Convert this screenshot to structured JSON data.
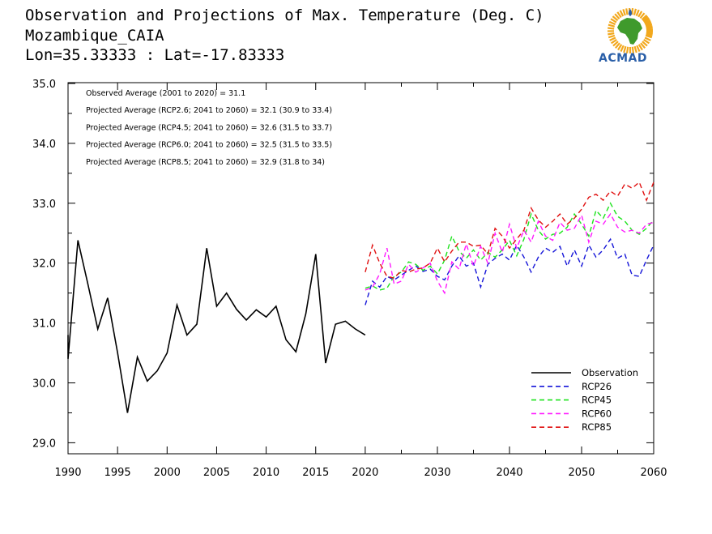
{
  "header": {
    "title": "Observation and Projections of Max. Temperature (Deg. C)",
    "location": "Mozambique_CAIA",
    "coords": "Lon=35.33333 : Lat=-17.83333"
  },
  "logo": {
    "text": "ACMAD",
    "colors": {
      "ring": "#f2a81d",
      "africa": "#3f9a2c",
      "drop": "#2a5fa8",
      "text": "#2a5fa8"
    }
  },
  "chart_data": {
    "type": "line",
    "x_range": [
      1990,
      2060
    ],
    "x_ticks": [
      1990,
      1995,
      2000,
      2005,
      2010,
      2015,
      2020,
      2030,
      2040,
      2050,
      2060
    ],
    "x_tick_labels": [
      "1990",
      "1995",
      "2000",
      "2005",
      "2010",
      "2015",
      "2020",
      "2030",
      "2040",
      "2050",
      "2060"
    ],
    "ylim": [
      28.8,
      35.0
    ],
    "y_ticks": [
      29.0,
      30.0,
      31.0,
      32.0,
      33.0,
      34.0,
      35.0
    ],
    "y_tick_labels": [
      "29.0",
      "30.0",
      "31.0",
      "32.0",
      "33.0",
      "34.0",
      "35.0"
    ],
    "annotations": [
      "Observed Average (2001 to 2020) = 31.1",
      "Projected Average (RCP2.6; 2041 to 2060) = 32.1 (30.9 to 33.4)",
      "Projected Average (RCP4.5; 2041 to 2060) = 32.6 (31.5 to 33.7)",
      "Projected Average (RCP6.0; 2041 to 2060) = 32.5 (31.5 to 33.5)",
      "Projected Average (RCP8.5; 2041 to 2060) = 32.9 (31.8 to 34)"
    ],
    "legend_position": "bottom-right",
    "series": [
      {
        "name": "Observation",
        "color": "#000000",
        "dashed": false,
        "x": [
          1989,
          1990,
          1991,
          1992,
          1993,
          1994,
          1995,
          1996,
          1997,
          1998,
          1999,
          2000,
          2001,
          2002,
          2003,
          2004,
          2005,
          2006,
          2007,
          2008,
          2009,
          2010,
          2011,
          2012,
          2013,
          2014,
          2015,
          2016,
          2017,
          2018,
          2019,
          2020
        ],
        "y": [
          30.8,
          30.4,
          32.38,
          31.65,
          30.9,
          31.42,
          30.5,
          29.5,
          30.43,
          30.03,
          30.2,
          30.5,
          31.3,
          30.8,
          30.98,
          32.25,
          31.28,
          31.5,
          31.23,
          31.05,
          31.22,
          31.1,
          31.28,
          30.72,
          30.52,
          31.15,
          32.15,
          30.33,
          30.98,
          31.03,
          30.9,
          30.8
        ]
      },
      {
        "name": "RCP26",
        "color": "#1515d8",
        "dashed": true,
        "x": [
          2020,
          2021,
          2022,
          2023,
          2024,
          2025,
          2026,
          2027,
          2028,
          2029,
          2030,
          2031,
          2032,
          2033,
          2034,
          2035,
          2036,
          2037,
          2038,
          2039,
          2040,
          2041,
          2042,
          2043,
          2044,
          2045,
          2046,
          2047,
          2048,
          2049,
          2050,
          2051,
          2052,
          2053,
          2054,
          2055,
          2056,
          2057,
          2058,
          2059,
          2060
        ],
        "y": [
          31.3,
          31.7,
          31.6,
          31.78,
          31.72,
          31.8,
          31.88,
          31.95,
          31.86,
          31.9,
          31.78,
          31.72,
          31.95,
          32.12,
          31.95,
          32.0,
          31.6,
          31.98,
          32.08,
          32.15,
          32.05,
          32.3,
          32.1,
          31.85,
          32.1,
          32.25,
          32.18,
          32.28,
          31.95,
          32.22,
          31.95,
          32.3,
          32.1,
          32.22,
          32.4,
          32.08,
          32.15,
          31.8,
          31.78,
          32.05,
          32.3
        ]
      },
      {
        "name": "RCP45",
        "color": "#1de31d",
        "dashed": true,
        "x": [
          2020,
          2021,
          2022,
          2023,
          2024,
          2025,
          2026,
          2027,
          2028,
          2029,
          2030,
          2031,
          2032,
          2033,
          2034,
          2035,
          2036,
          2037,
          2038,
          2039,
          2040,
          2041,
          2042,
          2043,
          2044,
          2045,
          2046,
          2047,
          2048,
          2049,
          2050,
          2051,
          2052,
          2053,
          2054,
          2055,
          2056,
          2057,
          2058,
          2059,
          2060
        ],
        "y": [
          31.58,
          31.62,
          31.55,
          31.58,
          31.78,
          31.85,
          32.02,
          31.98,
          31.88,
          31.95,
          31.82,
          32.05,
          32.45,
          32.2,
          32.08,
          32.22,
          32.05,
          32.18,
          32.1,
          32.22,
          32.38,
          32.12,
          32.4,
          32.82,
          32.55,
          32.4,
          32.48,
          32.5,
          32.6,
          32.82,
          32.65,
          32.45,
          32.88,
          32.75,
          33.0,
          32.78,
          32.7,
          32.55,
          32.48,
          32.58,
          32.72
        ]
      },
      {
        "name": "RCP60",
        "color": "#ff1aff",
        "dashed": true,
        "x": [
          2020,
          2021,
          2022,
          2023,
          2024,
          2025,
          2026,
          2027,
          2028,
          2029,
          2030,
          2031,
          2032,
          2033,
          2034,
          2035,
          2036,
          2037,
          2038,
          2039,
          2040,
          2041,
          2042,
          2043,
          2044,
          2045,
          2046,
          2047,
          2048,
          2049,
          2050,
          2051,
          2052,
          2053,
          2054,
          2055,
          2056,
          2057,
          2058,
          2059,
          2060
        ],
        "y": [
          31.55,
          31.6,
          31.82,
          32.25,
          31.65,
          31.7,
          31.98,
          31.85,
          31.92,
          32.0,
          31.7,
          31.5,
          32.02,
          31.9,
          32.32,
          31.95,
          32.28,
          32.0,
          32.5,
          32.18,
          32.65,
          32.25,
          32.55,
          32.35,
          32.7,
          32.45,
          32.38,
          32.68,
          32.55,
          32.58,
          32.8,
          32.35,
          32.7,
          32.65,
          32.82,
          32.6,
          32.52,
          32.55,
          32.5,
          32.65,
          32.68
        ]
      },
      {
        "name": "RCP85",
        "color": "#e01010",
        "dashed": true,
        "x": [
          2020,
          2021,
          2022,
          2023,
          2024,
          2025,
          2026,
          2027,
          2028,
          2029,
          2030,
          2031,
          2032,
          2033,
          2034,
          2035,
          2036,
          2037,
          2038,
          2039,
          2040,
          2041,
          2042,
          2043,
          2044,
          2045,
          2046,
          2047,
          2048,
          2049,
          2050,
          2051,
          2052,
          2053,
          2054,
          2055,
          2056,
          2057,
          2058,
          2059,
          2060
        ],
        "y": [
          31.85,
          32.3,
          32.0,
          31.78,
          31.75,
          31.88,
          31.85,
          31.9,
          31.92,
          32.0,
          32.25,
          32.02,
          32.2,
          32.35,
          32.35,
          32.28,
          32.3,
          32.15,
          32.58,
          32.45,
          32.25,
          32.4,
          32.55,
          32.92,
          32.72,
          32.6,
          32.7,
          32.82,
          32.65,
          32.75,
          32.9,
          33.1,
          33.15,
          33.05,
          33.2,
          33.12,
          33.32,
          33.25,
          33.35,
          33.05,
          33.35
        ]
      }
    ]
  }
}
